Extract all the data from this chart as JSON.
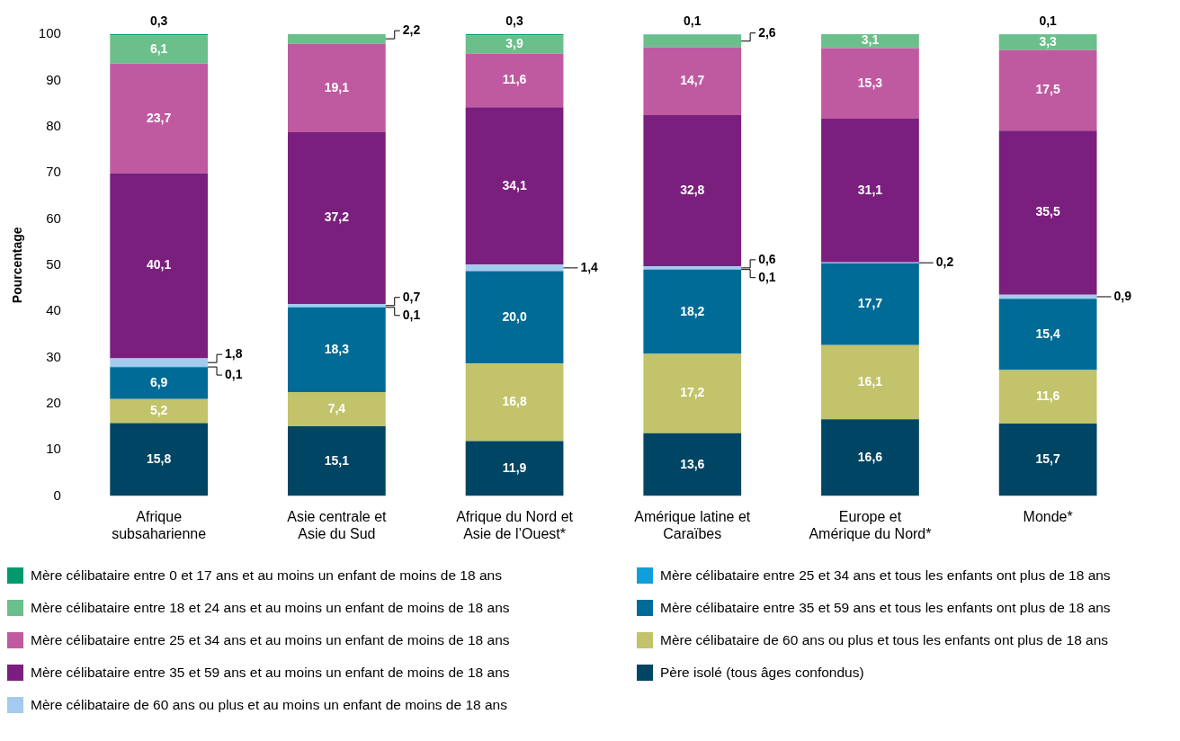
{
  "chart_data": {
    "type": "bar",
    "stacked": true,
    "ylabel": "Pourcentage",
    "ylim": [
      0,
      100
    ],
    "yticks": [
      0,
      10,
      20,
      30,
      40,
      50,
      60,
      70,
      80,
      90,
      100
    ],
    "grid": false,
    "legend": "bottom",
    "categories": [
      "Afrique\nsubsaharienne",
      "Asie centrale et\nAsie du Sud",
      "Afrique du Nord et\nAsie de l’Ouest*",
      "Amérique latine et\nCaraïbes",
      "Europe et\nAmérique du Nord*",
      "Monde*"
    ],
    "series": [
      {
        "name": "Père isolé (tous âges confondus)",
        "color": "#004563",
        "values": [
          15.8,
          15.1,
          11.9,
          13.6,
          16.6,
          15.7
        ],
        "value_labels": [
          "15,8",
          "15,1",
          "11,9",
          "13,6",
          "16,6",
          "15,7"
        ]
      },
      {
        "name": "Mère célibataire de 60 ans ou plus et tous les enfants ont plus de 18 ans",
        "color": "#c2c36a",
        "values": [
          5.2,
          7.4,
          16.8,
          17.2,
          16.1,
          11.6
        ],
        "value_labels": [
          "5,2",
          "7,4",
          "16,8",
          "17,2",
          "16,1",
          "11,6"
        ]
      },
      {
        "name": "Mère célibataire entre 35 et 59 ans et tous les enfants ont plus de 18 ans",
        "color": "#006b96",
        "values": [
          6.9,
          18.3,
          20.0,
          18.2,
          17.7,
          15.4
        ],
        "value_labels": [
          "6,9",
          "18,3",
          "20,0",
          "18,2",
          "17,7",
          "15,4"
        ]
      },
      {
        "name": "Mère célibataire entre 25 et 34 ans et tous les enfants ont plus de 18 ans",
        "color": "#119fdc",
        "values": [
          0.1,
          0.1,
          null,
          0.1,
          null,
          null
        ],
        "value_labels": [
          "0,1",
          "0,1",
          null,
          "0,1",
          null,
          null
        ]
      },
      {
        "name": "Mère célibataire de 60 ans ou plus et au moins un enfant de moins de 18 ans",
        "color": "#a3cbef",
        "values": [
          1.8,
          0.7,
          1.4,
          0.6,
          0.2,
          0.9
        ],
        "value_labels": [
          "1,8",
          "0,7",
          "1,4",
          "0,6",
          "0,2",
          "0,9"
        ]
      },
      {
        "name": "Mère célibataire entre 35 et 59 ans et au moins un enfant de moins de 18 ans",
        "color": "#7a1f7e",
        "values": [
          40.1,
          37.2,
          34.1,
          32.8,
          31.1,
          35.5
        ],
        "value_labels": [
          "40,1",
          "37,2",
          "34,1",
          "32,8",
          "31,1",
          "35,5"
        ]
      },
      {
        "name": "Mère célibataire entre 25 et 34 ans et au moins un enfant de moins de 18 ans",
        "color": "#c05aa0",
        "values": [
          23.7,
          19.1,
          11.6,
          14.7,
          15.3,
          17.5
        ],
        "value_labels": [
          "23,7",
          "19,1",
          "11,6",
          "14,7",
          "15,3",
          "17,5"
        ]
      },
      {
        "name": "Mère célibataire entre 18 et 24 ans et au moins un enfant de moins de 18 ans",
        "color": "#6bbf8a",
        "values": [
          6.1,
          2.2,
          3.9,
          2.6,
          3.1,
          3.3
        ],
        "value_labels": [
          "6,1",
          "2,2",
          "3,9",
          "2,6",
          "3,1",
          "3,3"
        ]
      },
      {
        "name": "Mère célibataire entre 0 et 17 ans et au moins un enfant de moins de 18 ans",
        "color": "#009a6e",
        "values": [
          0.3,
          null,
          0.3,
          0.1,
          null,
          0.1
        ],
        "value_labels": [
          "0,3",
          null,
          "0,3",
          "0,1",
          null,
          "0,1"
        ]
      }
    ]
  }
}
